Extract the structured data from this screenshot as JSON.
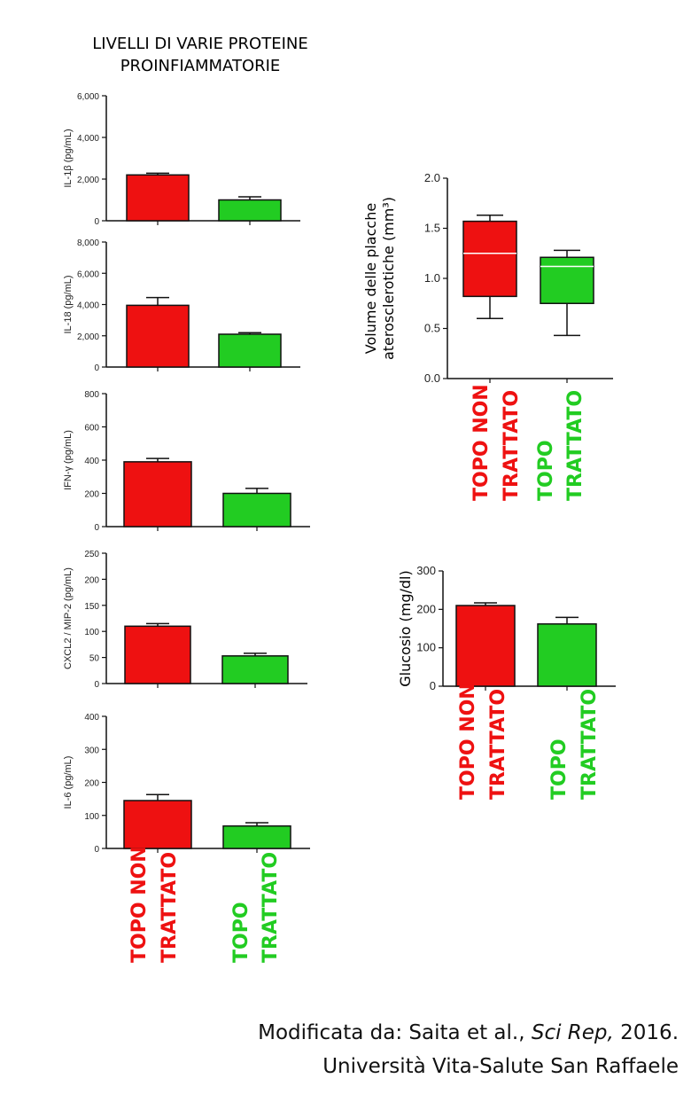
{
  "figure": {
    "title_lines": [
      "LIVELLI DI VARIE PROTEINE",
      "PROINFIAMMATORIE"
    ],
    "colors": {
      "untreated": "#ee1111",
      "treated": "#22cc22"
    },
    "credit": {
      "line1_prefix": "Modificata da: Saita et al., ",
      "line1_journal": "Sci Rep,",
      "line1_suffix": " 2016.",
      "line2": "Università Vita-Salute San Raffaele"
    }
  },
  "groups": [
    {
      "lines": [
        "TOPO NON",
        "TRATTATO"
      ],
      "color": "#ee1111"
    },
    {
      "lines": [
        "TOPO",
        "TRATTATO"
      ],
      "color": "#22cc22"
    }
  ],
  "chart_data": [
    {
      "type": "bar",
      "ylabel": "IL-1β (pg/mL)",
      "ylim": [
        0,
        6000
      ],
      "ticks": [
        "0",
        "2,000",
        "4,000",
        "6,000"
      ],
      "categories": [
        "TOPO NON TRATTATO",
        "TOPO TRATTATO"
      ],
      "values": [
        2200,
        1000
      ],
      "errors": [
        80,
        150
      ]
    },
    {
      "type": "bar",
      "ylabel": "IL-18 (pg/mL)",
      "ylim": [
        0,
        8000
      ],
      "ticks": [
        "0",
        "2,000",
        "4,000",
        "6,000",
        "8,000"
      ],
      "categories": [
        "TOPO NON TRATTATO",
        "TOPO TRATTATO"
      ],
      "values": [
        3950,
        2100
      ],
      "errors": [
        500,
        100
      ]
    },
    {
      "type": "bar",
      "ylabel": "IFN-γ (pg/mL)",
      "ylim": [
        0,
        800
      ],
      "ticks": [
        "0",
        "200",
        "400",
        "600",
        "800"
      ],
      "categories": [
        "TOPO NON TRATTATO",
        "TOPO TRATTATO"
      ],
      "values": [
        390,
        200
      ],
      "errors": [
        20,
        30
      ]
    },
    {
      "type": "bar",
      "ylabel": "CXCL2 / MIP-2 (pg/mL)",
      "ylim": [
        0,
        250
      ],
      "ticks": [
        "0",
        "50",
        "100",
        "150",
        "200",
        "250"
      ],
      "categories": [
        "TOPO NON TRATTATO",
        "TOPO TRATTATO"
      ],
      "values": [
        110,
        53
      ],
      "errors": [
        5,
        5
      ]
    },
    {
      "type": "bar",
      "ylabel": "IL-6 (pg/mL)",
      "ylim": [
        0,
        400
      ],
      "ticks": [
        "0",
        "100",
        "200",
        "300",
        "400"
      ],
      "categories": [
        "TOPO NON TRATTATO",
        "TOPO TRATTATO"
      ],
      "values": [
        145,
        68
      ],
      "errors": [
        18,
        10
      ]
    },
    {
      "type": "box",
      "ylabel_lines": [
        "Volume  delle placche",
        "aterosclerotiche  (mm³)"
      ],
      "ylim": [
        0,
        2.0
      ],
      "ticks": [
        "0.0",
        "0.5",
        "1.0",
        "1.5",
        "2.0"
      ],
      "categories": [
        "TOPO NON TRATTATO",
        "TOPO TRATTATO"
      ],
      "boxes": [
        {
          "min": 0.6,
          "q1": 0.82,
          "median": 1.25,
          "q3": 1.57,
          "max": 1.63
        },
        {
          "min": 0.43,
          "q1": 0.75,
          "median": 1.12,
          "q3": 1.21,
          "max": 1.28
        }
      ]
    },
    {
      "type": "bar",
      "ylabel": "Glucosio  (mg/dl)",
      "ylim": [
        0,
        300
      ],
      "ticks": [
        "0",
        "100",
        "200",
        "300"
      ],
      "categories": [
        "TOPO NON TRATTATO",
        "TOPO TRATTATO"
      ],
      "values": [
        210,
        162
      ],
      "errors": [
        7,
        17
      ]
    }
  ]
}
